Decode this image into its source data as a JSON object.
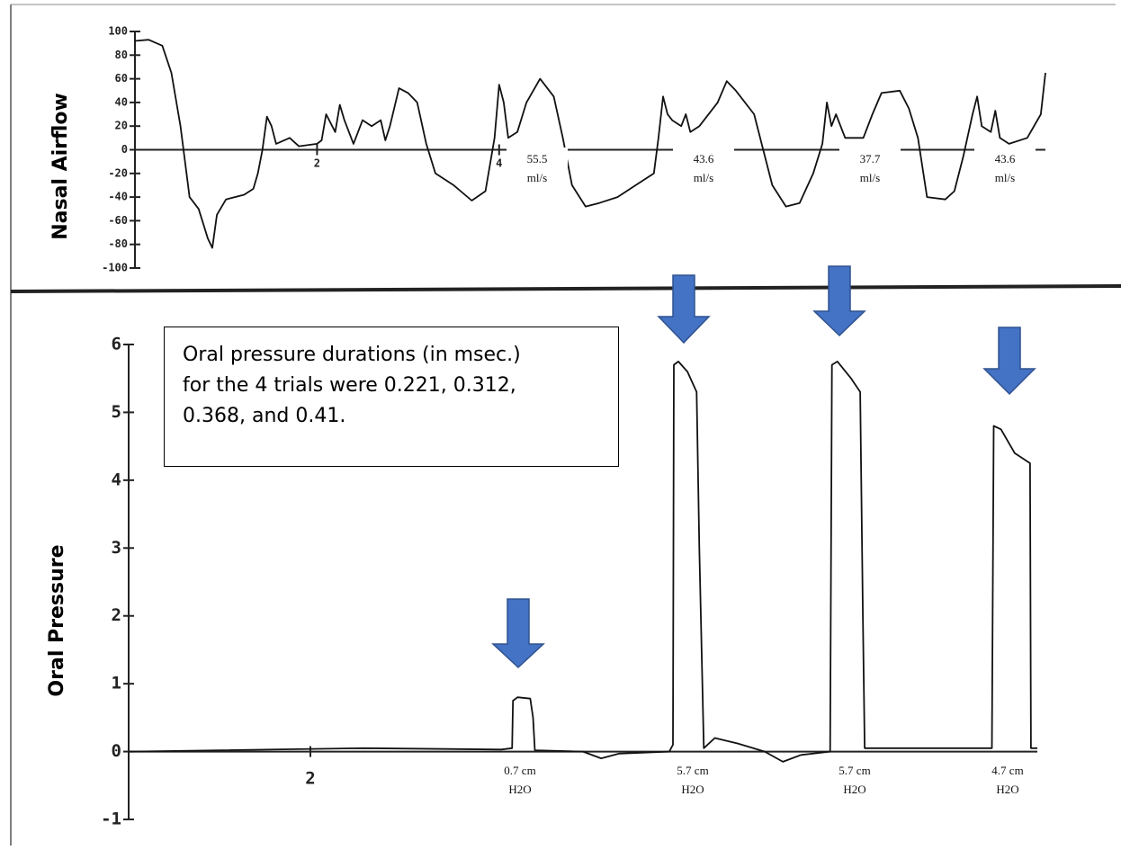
{
  "chart_data": [
    {
      "type": "line",
      "ylabel": "Nasal Airflow",
      "color": "#111111",
      "xlim": [
        0,
        10
      ],
      "ylim": [
        -100,
        100
      ],
      "yticks": [
        100,
        80,
        60,
        40,
        20,
        0,
        -20,
        -40,
        -60,
        -80,
        -100
      ],
      "xticks": [
        2,
        4
      ],
      "x": [
        0,
        0.15,
        0.3,
        0.4,
        0.5,
        0.6,
        0.7,
        0.8,
        0.85,
        0.9,
        1.0,
        1.2,
        1.3,
        1.35,
        1.4,
        1.45,
        1.5,
        1.55,
        1.7,
        1.8,
        2.0,
        2.05,
        2.1,
        2.2,
        2.25,
        2.3,
        2.4,
        2.5,
        2.6,
        2.7,
        2.75,
        2.8,
        2.9,
        3.0,
        3.1,
        3.2,
        3.3,
        3.5,
        3.7,
        3.85,
        3.95,
        4.0,
        4.05,
        4.1,
        4.2,
        4.3,
        4.45,
        4.6,
        4.7,
        4.8,
        4.95,
        5.1,
        5.3,
        5.5,
        5.7,
        5.75,
        5.8,
        5.85,
        5.9,
        6.0,
        6.05,
        6.1,
        6.2,
        6.4,
        6.5,
        6.6,
        6.8,
        6.9,
        7.0,
        7.15,
        7.3,
        7.45,
        7.55,
        7.6,
        7.65,
        7.7,
        7.8,
        8.0,
        8.1,
        8.2,
        8.4,
        8.5,
        8.6,
        8.7,
        8.9,
        9.0,
        9.1,
        9.2,
        9.25,
        9.3,
        9.4,
        9.45,
        9.5,
        9.6,
        9.8,
        9.95,
        10.0
      ],
      "values": [
        92,
        93,
        88,
        65,
        20,
        -40,
        -50,
        -75,
        -83,
        -55,
        -42,
        -38,
        -33,
        -20,
        0,
        28,
        20,
        5,
        10,
        3,
        5,
        8,
        30,
        15,
        38,
        25,
        5,
        25,
        20,
        25,
        8,
        20,
        52,
        48,
        40,
        5,
        -20,
        -30,
        -43,
        -35,
        10,
        55,
        40,
        10,
        15,
        40,
        60,
        45,
        10,
        -30,
        -48,
        -45,
        -40,
        -30,
        -20,
        10,
        45,
        30,
        25,
        20,
        30,
        15,
        20,
        40,
        58,
        50,
        30,
        0,
        -30,
        -48,
        -45,
        -20,
        5,
        40,
        20,
        30,
        10,
        10,
        30,
        48,
        50,
        35,
        10,
        -40,
        -42,
        -35,
        -5,
        30,
        45,
        20,
        15,
        33,
        10,
        5,
        10,
        30,
        65
      ],
      "annotations": [
        [
          "55.5",
          "ml/s"
        ],
        [
          "43.6",
          "ml/s"
        ],
        [
          "37.7",
          "ml/s"
        ],
        [
          "43.6",
          "ml/s"
        ]
      ]
    },
    {
      "type": "line",
      "ylabel": "Oral Pressure",
      "color": "#111111",
      "xlim": [
        0,
        10
      ],
      "ylim": [
        -1,
        6
      ],
      "yticks": [
        6,
        5,
        4,
        3,
        2,
        1,
        0,
        -1
      ],
      "xticks": [
        2
      ],
      "x": [
        0,
        2.6,
        4.1,
        4.22,
        4.23,
        4.28,
        4.42,
        4.45,
        4.47,
        5.0,
        5.2,
        5.4,
        5.95,
        5.99,
        6.0,
        6.05,
        6.15,
        6.25,
        6.28,
        6.33,
        6.45,
        6.7,
        7.0,
        7.2,
        7.4,
        7.72,
        7.74,
        7.8,
        7.95,
        8.05,
        8.08,
        8.1,
        9.5,
        9.52,
        9.6,
        9.75,
        9.92,
        9.93,
        10.0
      ],
      "values": [
        0,
        0.05,
        0.03,
        0.05,
        0.75,
        0.8,
        0.78,
        0.5,
        0.02,
        0,
        -0.1,
        -0.03,
        0,
        0.1,
        5.7,
        5.75,
        5.6,
        5.3,
        3,
        0.05,
        0.2,
        0.12,
        0,
        -0.15,
        -0.05,
        0,
        5.7,
        5.75,
        5.5,
        5.3,
        2,
        0.05,
        0.05,
        4.8,
        4.75,
        4.4,
        4.25,
        0.05,
        0.05
      ],
      "annotations": [
        [
          "0.7 cm",
          "H2O"
        ],
        [
          "5.7 cm",
          "H2O"
        ],
        [
          "5.7 cm",
          "H2O"
        ],
        [
          "4.7 cm",
          "H2O"
        ]
      ],
      "note": [
        "Oral pressure durations (in msec.)",
        "for the 4 trials were 0.221, 0.312,",
        "0.368, and 0.41."
      ]
    }
  ]
}
